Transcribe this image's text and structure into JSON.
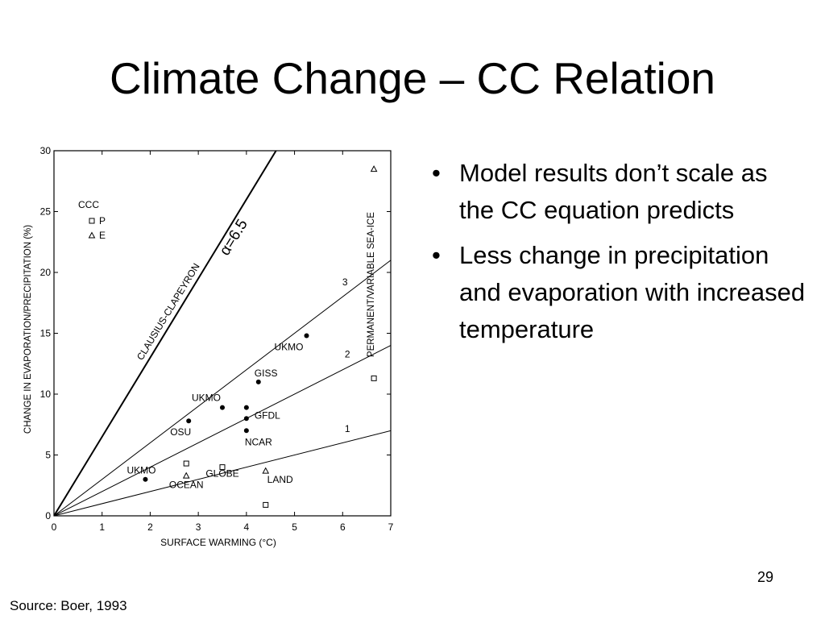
{
  "slide": {
    "title": "Climate Change – CC Relation",
    "bullets": [
      "Model results don’t scale as the CC equation predicts",
      "Less change in precipitation and evaporation with increased temperature"
    ],
    "page_number": "29",
    "source": "Source: Boer, 1993"
  },
  "chart_data": {
    "type": "scatter",
    "xlabel": "SURFACE WARMING (°C)",
    "ylabel": "CHANGE IN EVAPORATION/PRECIPITATION (%)",
    "xlim": [
      0,
      7
    ],
    "ylim": [
      0,
      30
    ],
    "x_ticks": [
      "0",
      "1",
      "2",
      "3",
      "4",
      "5",
      "6",
      "7"
    ],
    "y_ticks": [
      "0",
      "5",
      "10",
      "15",
      "20",
      "25",
      "30"
    ],
    "grid": false,
    "reference_lines": [
      {
        "label": "1",
        "slope": 1
      },
      {
        "label": "2",
        "slope": 2
      },
      {
        "label": "3",
        "slope": 3
      },
      {
        "label": "CLAUSIUS-CLAPEYRON",
        "slope": 6.5,
        "annotation": "α=6.5"
      }
    ],
    "points": [
      {
        "label": "UKMO",
        "x": 5.25,
        "y": 14.8,
        "marker": "dot"
      },
      {
        "label": "GISS",
        "x": 4.25,
        "y": 11.0,
        "marker": "dot"
      },
      {
        "label": "UKMO",
        "x": 3.5,
        "y": 8.9,
        "marker": "dot"
      },
      {
        "label": "GFDL",
        "x": 4.0,
        "y": 8.9,
        "marker": "dot"
      },
      {
        "label": "",
        "x": 4.0,
        "y": 8.0,
        "marker": "dot"
      },
      {
        "label": "OSU",
        "x": 2.8,
        "y": 7.8,
        "marker": "dot"
      },
      {
        "label": "NCAR",
        "x": 4.0,
        "y": 7.0,
        "marker": "dot"
      },
      {
        "label": "UKMO",
        "x": 1.9,
        "y": 3.0,
        "marker": "dot"
      },
      {
        "label": "",
        "x": 2.75,
        "y": 4.3,
        "marker": "square"
      },
      {
        "label": "",
        "x": 2.75,
        "y": 3.3,
        "marker": "triangle"
      },
      {
        "label": "",
        "x": 3.5,
        "y": 4.0,
        "marker": "square"
      },
      {
        "label": "",
        "x": 4.4,
        "y": 3.7,
        "marker": "triangle"
      },
      {
        "label": "",
        "x": 4.4,
        "y": 0.9,
        "marker": "square"
      },
      {
        "label": "",
        "x": 6.65,
        "y": 28.5,
        "marker": "triangle"
      },
      {
        "label": "",
        "x": 6.65,
        "y": 11.3,
        "marker": "square"
      }
    ],
    "region_labels": [
      {
        "text": "OCEAN",
        "x": 2.75,
        "y": 2.3
      },
      {
        "text": "GLOBE",
        "x": 3.5,
        "y": 3.2
      },
      {
        "text": "LAND",
        "x": 4.7,
        "y": 2.7
      },
      {
        "text": "PERMANENT/VARIABLE SEA-ICE",
        "x": 6.65,
        "y": 19,
        "rotated": true
      }
    ],
    "legend": {
      "title": "CCC",
      "entries": [
        {
          "marker": "square",
          "label": "P"
        },
        {
          "marker": "triangle",
          "label": "E"
        }
      ],
      "position": "top-left"
    }
  }
}
